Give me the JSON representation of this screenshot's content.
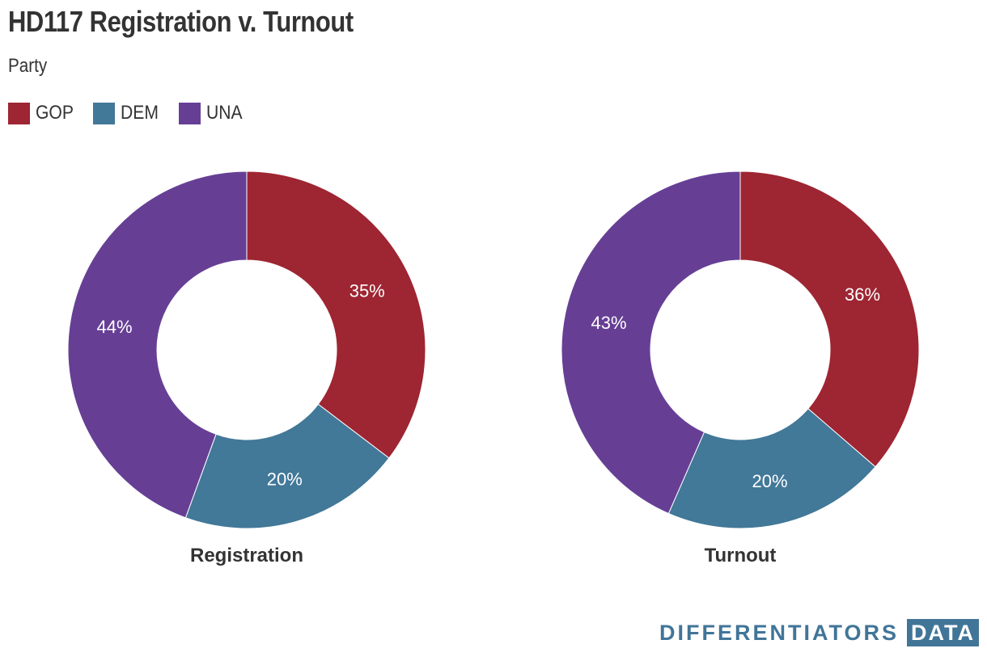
{
  "title": "HD117 Registration v. Turnout",
  "subtitle": "Party",
  "legend": [
    {
      "label": "GOP",
      "color": "#9e2532"
    },
    {
      "label": "DEM",
      "color": "#427898"
    },
    {
      "label": "UNA",
      "color": "#663f95"
    }
  ],
  "chart_data": [
    {
      "type": "pie",
      "subtype": "donut",
      "title": "Registration",
      "categories": [
        "GOP",
        "DEM",
        "UNA"
      ],
      "values": [
        35,
        20,
        44
      ],
      "labels": [
        "35%",
        "20%",
        "44%"
      ],
      "colors": [
        "#9e2532",
        "#427898",
        "#663f95"
      ]
    },
    {
      "type": "pie",
      "subtype": "donut",
      "title": "Turnout",
      "categories": [
        "GOP",
        "DEM",
        "UNA"
      ],
      "values": [
        36,
        20,
        43
      ],
      "labels": [
        "36%",
        "20%",
        "43%"
      ],
      "colors": [
        "#9e2532",
        "#427898",
        "#663f95"
      ]
    }
  ],
  "brand": {
    "name": "DIFFERENTIATORS",
    "tag": "DATA"
  }
}
